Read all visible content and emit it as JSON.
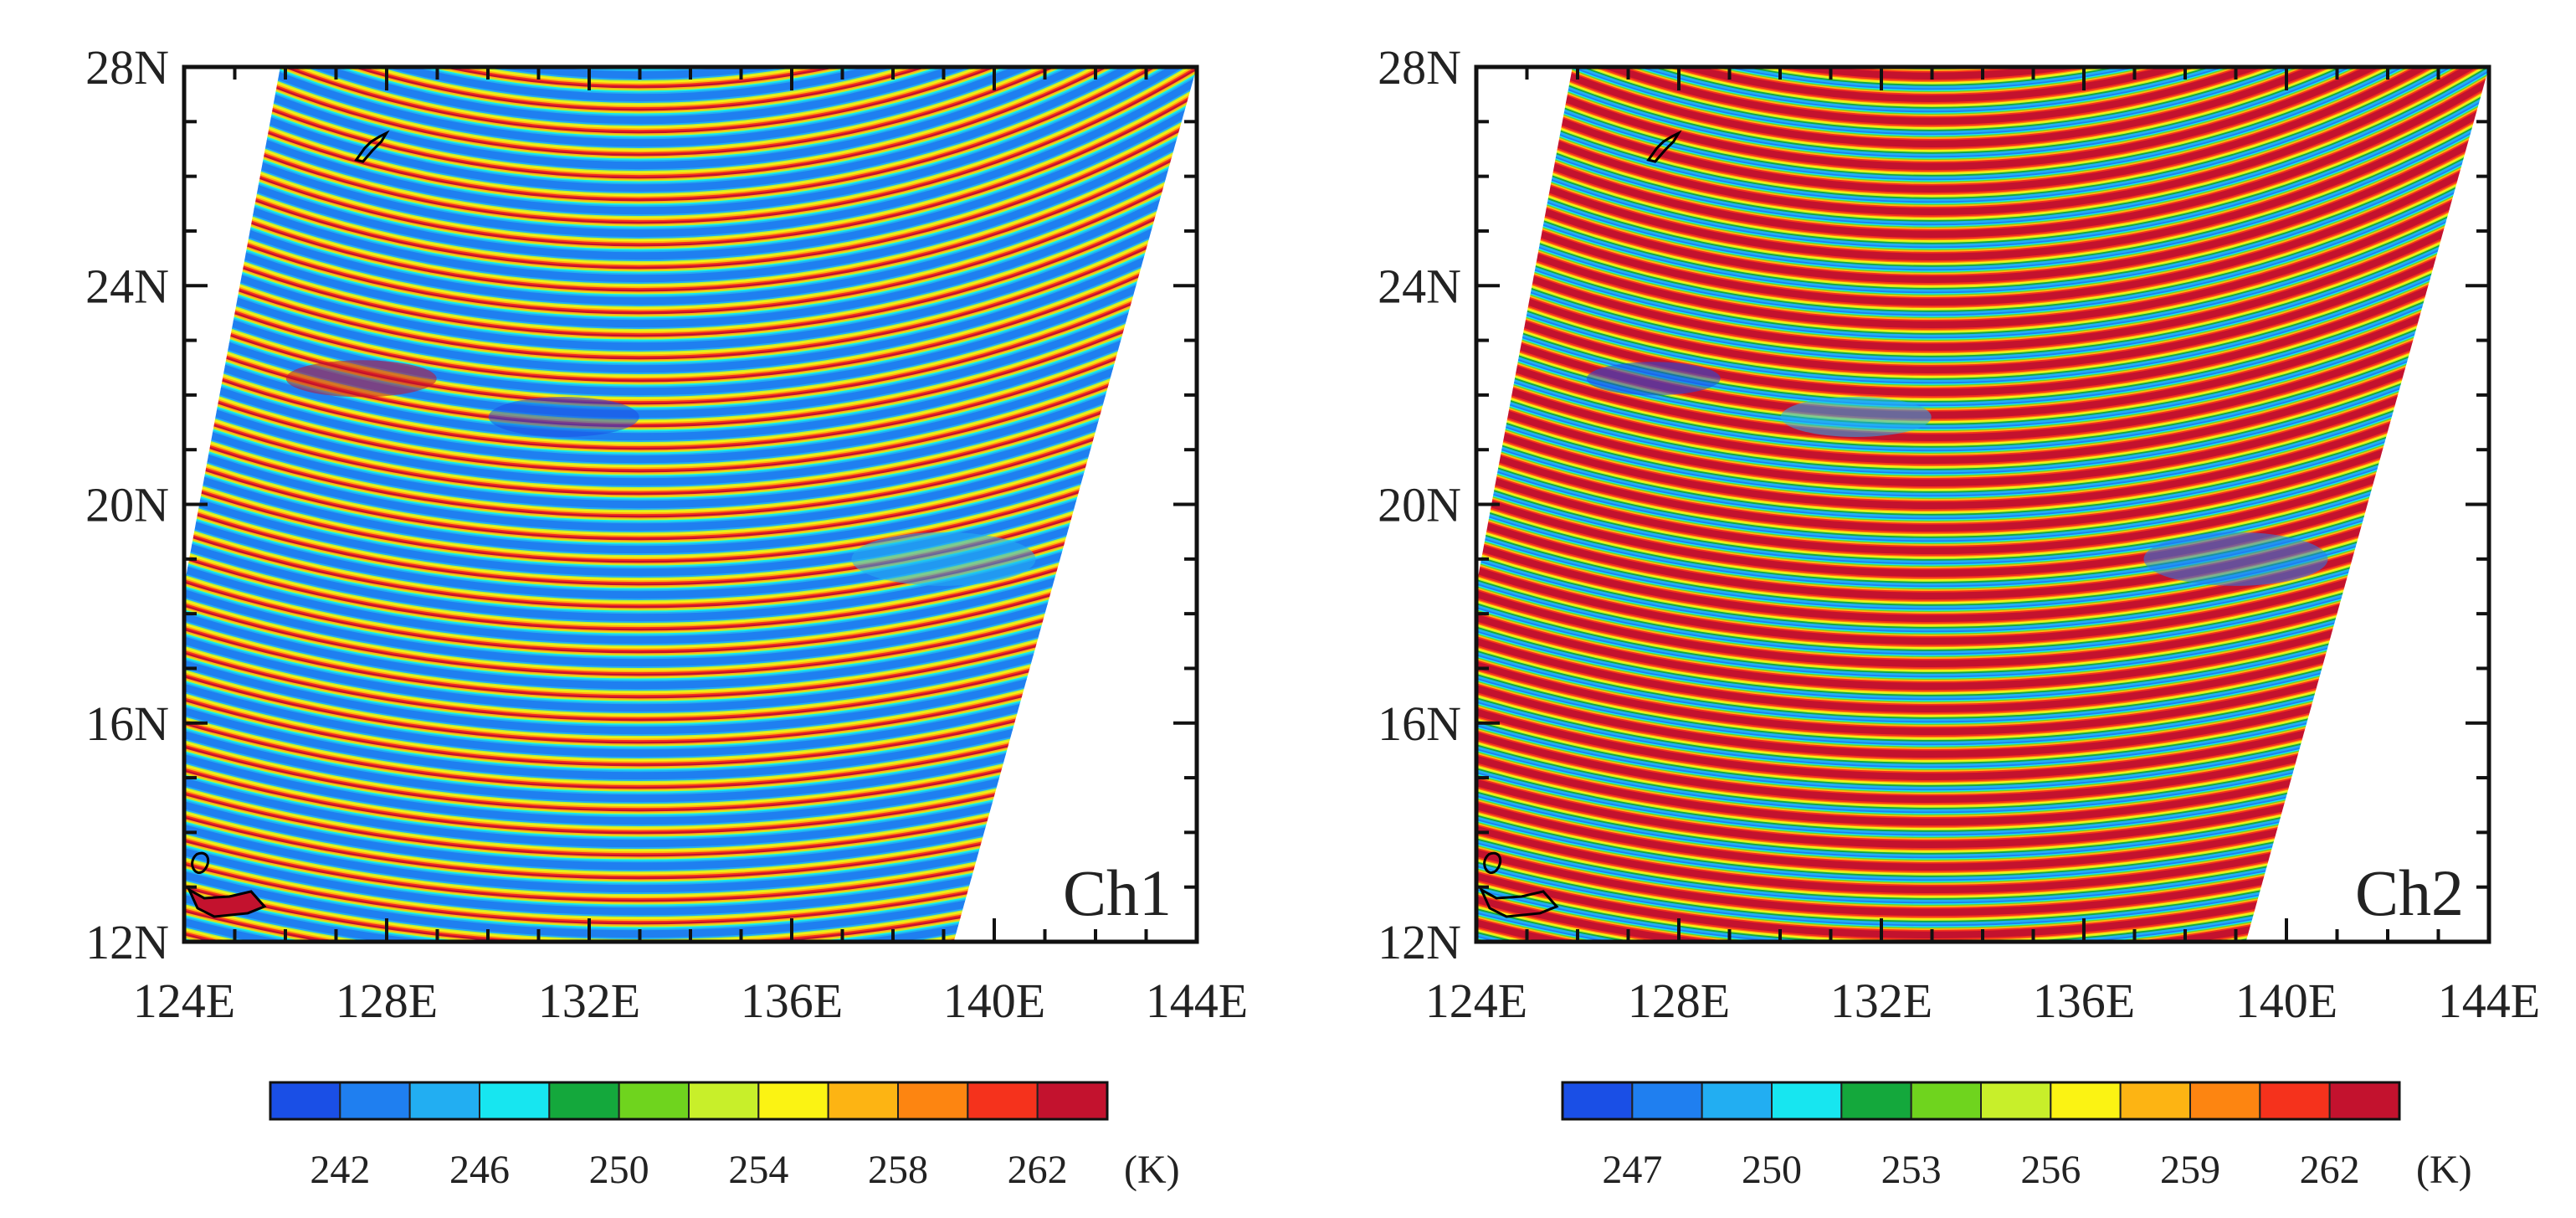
{
  "chart_data": [
    {
      "type": "heatmap",
      "panel_label": "Ch1",
      "x_tick_labels": [
        "124E",
        "128E",
        "132E",
        "136E",
        "140E",
        "144E"
      ],
      "y_tick_labels": [
        "12N",
        "16N",
        "20N",
        "24N",
        "28N"
      ],
      "xlim": [
        124,
        144
      ],
      "ylim": [
        12,
        28
      ],
      "swath_left_edge": [
        [
          124,
          18.5
        ],
        [
          125.9,
          28
        ]
      ],
      "swath_right_edge": [
        [
          139.2,
          12
        ],
        [
          144,
          28
        ]
      ],
      "arc_center": [
        133,
        45
      ],
      "dominant": "cool",
      "colorbar_levels": [
        242,
        246,
        250,
        254,
        258,
        262
      ],
      "colorbar_unit": "(K)",
      "colorbar_colors": [
        "#1a4fe6",
        "#1f7ff0",
        "#22aef2",
        "#17e6f0",
        "#14a83c",
        "#6fd41e",
        "#c8ef2a",
        "#fbf313",
        "#fdb413",
        "#fd8511",
        "#f5321c",
        "#c3122e"
      ]
    },
    {
      "type": "heatmap",
      "panel_label": "Ch2",
      "x_tick_labels": [
        "124E",
        "128E",
        "132E",
        "136E",
        "140E",
        "144E"
      ],
      "y_tick_labels": [
        "12N",
        "16N",
        "20N",
        "24N",
        "28N"
      ],
      "xlim": [
        124,
        144
      ],
      "ylim": [
        12,
        28
      ],
      "swath_left_edge": [
        [
          124,
          18.5
        ],
        [
          125.9,
          28
        ]
      ],
      "swath_right_edge": [
        [
          139.2,
          12
        ],
        [
          144,
          28
        ]
      ],
      "arc_center": [
        133,
        45
      ],
      "dominant": "warm",
      "colorbar_levels": [
        247,
        250,
        253,
        256,
        259,
        262
      ],
      "colorbar_unit": "(K)",
      "colorbar_colors": [
        "#1a4fe6",
        "#1f7ff0",
        "#22aef2",
        "#17e6f0",
        "#14a83c",
        "#6fd41e",
        "#c8ef2a",
        "#fbf313",
        "#fdb413",
        "#fd8511",
        "#f5321c",
        "#c3122e"
      ]
    }
  ]
}
